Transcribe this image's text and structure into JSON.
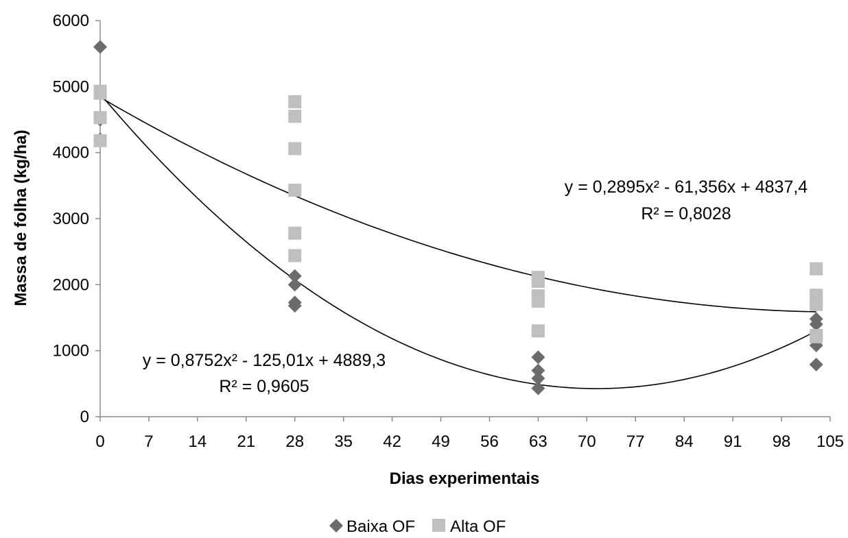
{
  "chart_data": {
    "type": "scatter",
    "title": "",
    "xlabel": "Dias experimentais",
    "ylabel": "Massa de folha (kg/ha)",
    "xlim": [
      0,
      105
    ],
    "ylim": [
      0,
      6000
    ],
    "xticks": [
      "0",
      "7",
      "14",
      "21",
      "28",
      "35",
      "42",
      "49",
      "56",
      "63",
      "70",
      "77",
      "84",
      "91",
      "98",
      "105"
    ],
    "yticks": [
      "0",
      "1000",
      "2000",
      "3000",
      "4000",
      "5000",
      "6000"
    ],
    "grid": false,
    "legend_position": "bottom",
    "series": [
      {
        "name": "Baixa OF",
        "marker": "diamond",
        "color": "#6b6b6b",
        "points": [
          [
            0,
            5600
          ],
          [
            0,
            4900
          ],
          [
            0,
            4500
          ],
          [
            0,
            4200
          ],
          [
            28,
            2130
          ],
          [
            28,
            2000
          ],
          [
            28,
            1730
          ],
          [
            28,
            1680
          ],
          [
            63,
            900
          ],
          [
            63,
            700
          ],
          [
            63,
            580
          ],
          [
            63,
            430
          ],
          [
            103,
            1480
          ],
          [
            103,
            1400
          ],
          [
            103,
            1080
          ],
          [
            103,
            790
          ]
        ],
        "trendline": {
          "equation": "y = 0,8752x² - 125,01x + 4889,3",
          "r2": "R² = 0,9605",
          "a": 0.8752,
          "b": -125.01,
          "c": 4889.3,
          "x_range": [
            0,
            103
          ]
        }
      },
      {
        "name": "Alta OF",
        "marker": "square",
        "color": "#bfbfbf",
        "points": [
          [
            0,
            4930
          ],
          [
            0,
            4900
          ],
          [
            0,
            4530
          ],
          [
            0,
            4180
          ],
          [
            28,
            4770
          ],
          [
            28,
            4550
          ],
          [
            28,
            4060
          ],
          [
            28,
            3430
          ],
          [
            28,
            2780
          ],
          [
            28,
            2440
          ],
          [
            63,
            2110
          ],
          [
            63,
            2050
          ],
          [
            63,
            1830
          ],
          [
            63,
            1750
          ],
          [
            63,
            1300
          ],
          [
            103,
            2240
          ],
          [
            103,
            1840
          ],
          [
            103,
            1760
          ],
          [
            103,
            1700
          ],
          [
            103,
            1230
          ],
          [
            103,
            1210
          ]
        ],
        "trendline": {
          "equation": "y = 0,2895x² - 61,356x + 4837,4",
          "r2": "R² = 0,8028",
          "a": 0.2895,
          "b": -61.356,
          "c": 4837.4,
          "x_range": [
            0,
            103
          ]
        }
      }
    ]
  }
}
